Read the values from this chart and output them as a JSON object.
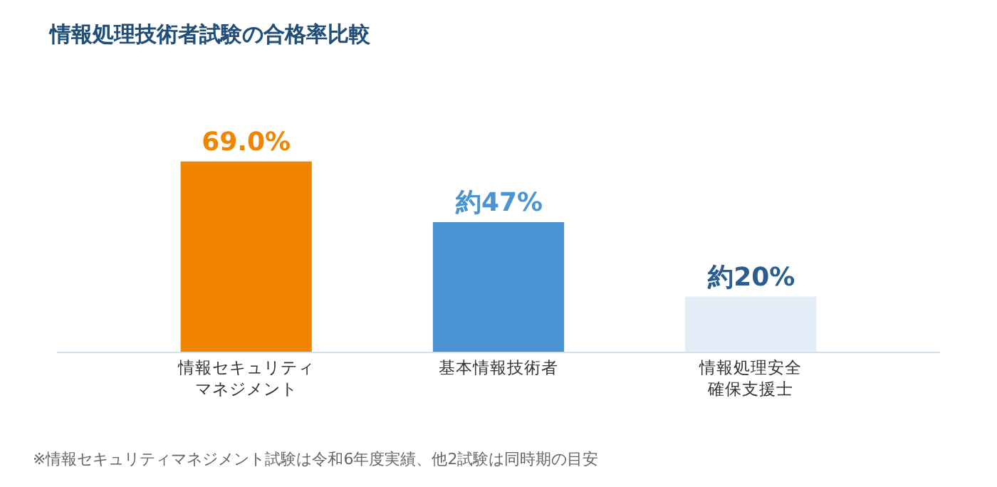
{
  "chart_data": {
    "type": "bar",
    "title": "情報処理技術者試験の合格率比較",
    "categories": [
      "情報セキュリティマネジメント",
      "基本情報技術者",
      "情報処理安全確保支援士"
    ],
    "values": [
      69.0,
      47,
      20
    ],
    "value_labels": [
      "69.0%",
      "約47%",
      "約20%"
    ],
    "colors": [
      "#f28500",
      "#4a94d4",
      "#e3edf7"
    ],
    "annotations": [
      "※情報セキュリティマネジメント試験は令和6年度実績、他2試験は同時期の目安"
    ],
    "legend": false
  }
}
